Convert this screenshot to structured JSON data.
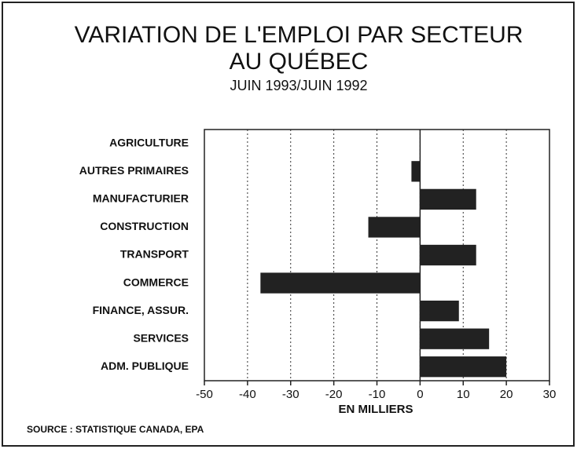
{
  "chart_data": {
    "type": "bar",
    "orientation": "horizontal",
    "title": [
      "VARIATION DE L'EMPLOI PAR SECTEUR",
      "AU QUÉBEC"
    ],
    "subtitle": "JUIN 1993/JUIN 1992",
    "x_label": "EN MILLIERS",
    "source": "SOURCE : STATISTIQUE CANADA, EPA",
    "categories": [
      "AGRICULTURE",
      "AUTRES PRIMAIRES",
      "MANUFACTURIER",
      "CONSTRUCTION",
      "TRANSPORT",
      "COMMERCE",
      "FINANCE, ASSUR.",
      "SERVICES",
      "ADM. PUBLIQUE"
    ],
    "values": [
      0,
      -2,
      13,
      -12,
      13,
      -37,
      9,
      16,
      20
    ],
    "color": "#222222",
    "xlim": [
      -50,
      30
    ],
    "xticks": [
      -50,
      -40,
      -30,
      -20,
      -10,
      0,
      10,
      20,
      30
    ],
    "grid": true
  }
}
